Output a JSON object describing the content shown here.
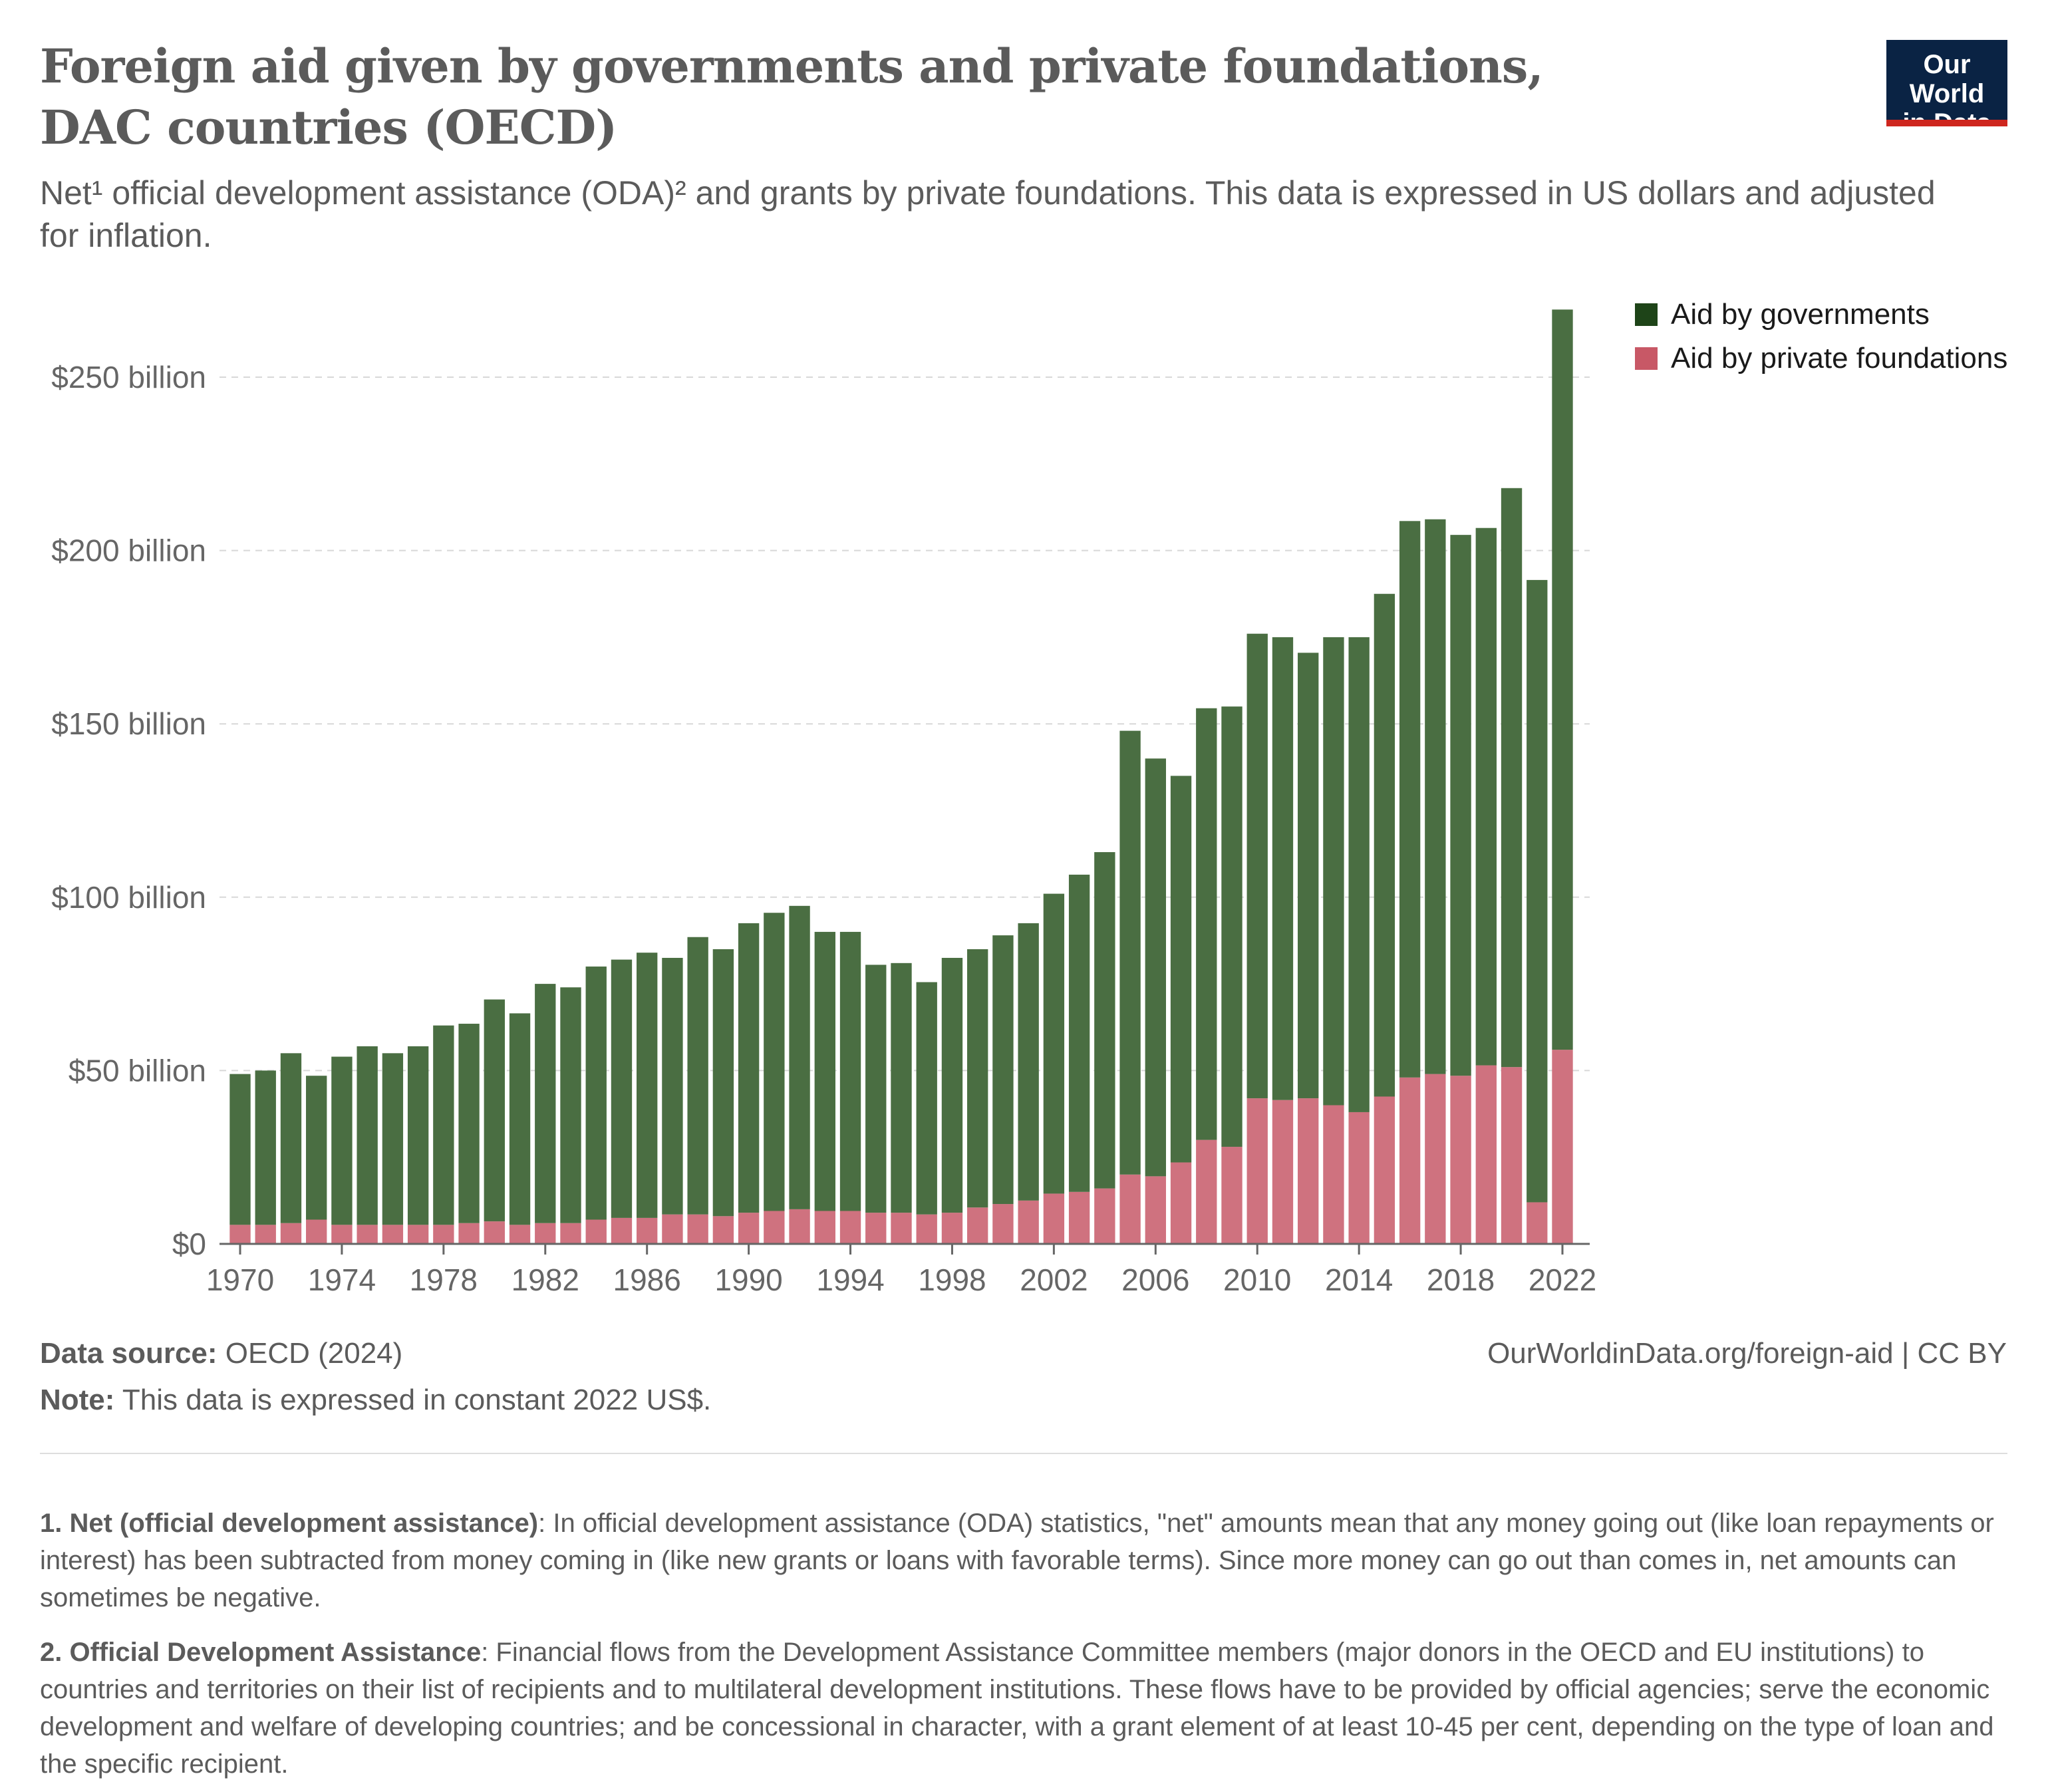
{
  "header": {
    "title": "Foreign aid given by governments and private foundations, DAC countries (OECD)",
    "subtitle": "Net¹ official development assistance (ODA)² and grants by private foundations. This data is expressed in US dollars and adjusted for inflation.",
    "logo_line1": "Our World",
    "logo_line2": "in Data"
  },
  "colors": {
    "governments": "#4a6e42",
    "governments_legend": "#1e4418",
    "foundations": "#cf727f",
    "foundations_legend": "#c85866",
    "grid": "#d8d8d8",
    "axis": "#666666"
  },
  "legend": {
    "governments": "Aid by governments",
    "foundations": "Aid by private foundations"
  },
  "chart_data": {
    "type": "bar",
    "stacked": true,
    "x": [
      1970,
      1971,
      1972,
      1973,
      1974,
      1975,
      1976,
      1977,
      1978,
      1979,
      1980,
      1981,
      1982,
      1983,
      1984,
      1985,
      1986,
      1987,
      1988,
      1989,
      1990,
      1991,
      1992,
      1993,
      1994,
      1995,
      1996,
      1997,
      1998,
      1999,
      2000,
      2001,
      2002,
      2003,
      2004,
      2005,
      2006,
      2007,
      2008,
      2009,
      2010,
      2011,
      2012,
      2013,
      2014,
      2015,
      2016,
      2017,
      2018,
      2019,
      2020,
      2021,
      2022
    ],
    "series": [
      {
        "name": "Aid by private foundations",
        "values": [
          5.5,
          5.5,
          6,
          7,
          5.5,
          5.5,
          5.5,
          5.5,
          5.5,
          6,
          6.5,
          5.5,
          6,
          6,
          7,
          7.5,
          7.5,
          8.5,
          8.5,
          8,
          9,
          9.5,
          10,
          9.5,
          9.5,
          9,
          9,
          8.5,
          9,
          10.5,
          11.5,
          12.5,
          14.5,
          15,
          16,
          20,
          19.5,
          23.5,
          30,
          28,
          42,
          41.5,
          42,
          40,
          38,
          42.5,
          48,
          49,
          48.5,
          51.5,
          51,
          12,
          56
        ]
      },
      {
        "name": "Aid by governments",
        "values": [
          43.5,
          44.5,
          49,
          41.5,
          48.5,
          51.5,
          49.5,
          51.5,
          57.5,
          57.5,
          64,
          61,
          69,
          68,
          73,
          74.5,
          76.5,
          74,
          80,
          77,
          83.5,
          86,
          87.5,
          80.5,
          80.5,
          71.5,
          72,
          67,
          73.5,
          74.5,
          77.5,
          80,
          86.5,
          91.5,
          97,
          128,
          120.5,
          111.5,
          124.5,
          127,
          134,
          133.5,
          128.5,
          135,
          137,
          145,
          160.5,
          160,
          156,
          155,
          167,
          179.5,
          213.5
        ]
      }
    ],
    "x_ticks": [
      1970,
      1974,
      1978,
      1982,
      1986,
      1990,
      1994,
      1998,
      2002,
      2006,
      2010,
      2014,
      2018,
      2022
    ],
    "y_ticks": [
      0,
      50,
      100,
      150,
      200,
      250
    ],
    "y_tick_labels": [
      "$0",
      "$50 billion",
      "$100 billion",
      "$150 billion",
      "$200 billion",
      "$250 billion"
    ],
    "ylim": [
      0,
      270
    ],
    "grid": "horizontal dashed",
    "legend_position": "top-right"
  },
  "footer": {
    "source_label": "Data source:",
    "source_value": " OECD (2024)",
    "note_label": "Note:",
    "note_value": " This data is expressed in constant 2022 US$.",
    "url": "OurWorldinData.org/foreign-aid | CC BY"
  },
  "notes": {
    "n1_label": "1. Net (official development assistance)",
    "n1_text": ": In official development assistance (ODA) statistics, \"net\" amounts mean that any money going out (like loan repayments or interest) has been subtracted from money coming in (like new grants or loans with favorable terms). Since more money can go out than comes in, net amounts can sometimes be negative.",
    "n2_label": "2. Official Development Assistance",
    "n2_text": ": Financial flows from the Development Assistance Committee members (major donors in the OECD and EU institutions) to countries and territories on their list of recipients and to multilateral development institutions. These flows have to be provided by official agencies; serve the economic development and welfare of developing countries; and be concessional in character, with a grant element of at least 10-45 per cent, depending on the type of loan and the specific recipient."
  }
}
